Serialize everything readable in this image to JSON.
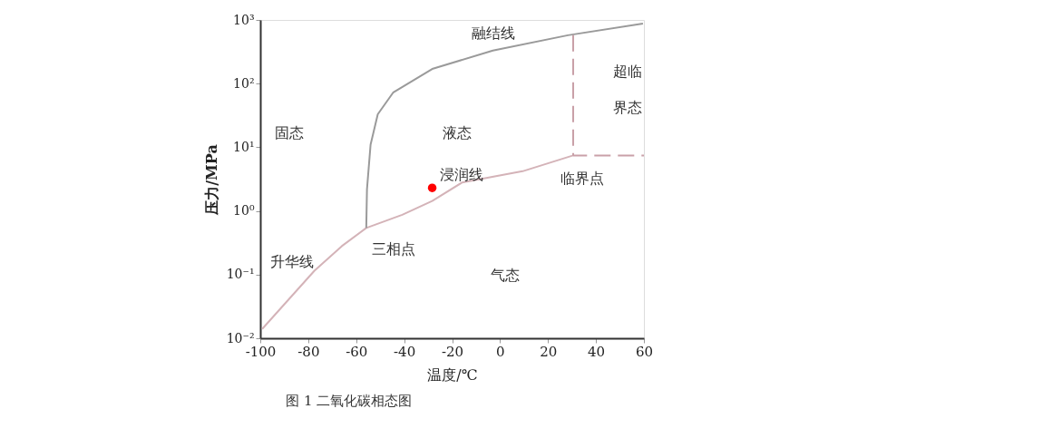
{
  "chart_data": {
    "type": "line",
    "xlabel": "温度/℃",
    "ylabel": "压力/MPa",
    "log": "y",
    "grid": false,
    "xlim": [
      -100,
      60
    ],
    "xticks": [
      -100,
      -80,
      -60,
      -40,
      -20,
      0,
      20,
      40,
      60
    ],
    "ylim": [
      0.01,
      1000
    ],
    "yticks": [
      {
        "value": 0.01,
        "label": "10⁻²"
      },
      {
        "value": 0.1,
        "label": "10⁻¹"
      },
      {
        "value": 1,
        "label": "10⁰"
      },
      {
        "value": 10,
        "label": "10¹"
      },
      {
        "value": 100,
        "label": "10²"
      },
      {
        "value": 1000,
        "label": "10³"
      }
    ],
    "series": [
      {
        "color": "#d4b3b8",
        "line_style": "solid",
        "x": [
          -99.2,
          -77.4,
          -66,
          -55.8,
          -40.8,
          -28.3,
          -15.8,
          9.4,
          30.2
        ],
        "values": [
          0.014,
          0.115,
          0.28,
          0.54,
          0.87,
          1.43,
          2.8,
          4.2,
          7.4
        ]
      },
      {
        "color": "#9a9a9a",
        "line_style": "solid",
        "x": [
          -55.8,
          -55.5,
          -54,
          -51,
          -44.5,
          -28.3,
          -3,
          28.3,
          59.6
        ],
        "values": [
          0.54,
          2.2,
          11,
          33,
          73,
          170,
          330,
          575,
          880
        ]
      },
      {
        "color": "#c9a0a8",
        "line_style": "dashed",
        "x": [
          30.5,
          30.5,
          60
        ],
        "values": [
          575,
          7.4,
          7.4
        ]
      },
      {
        "type": "scatter",
        "marker": "circle",
        "color": "#ff0000",
        "x": [
          -28.3
        ],
        "values": [
          2.3
        ]
      }
    ],
    "annotations": [
      "融结线",
      "超临界态",
      "固态",
      "液态",
      "浸润线",
      "临界点",
      "三相点",
      "升华线",
      "气态",
      "图 1   二氧化碳相态图"
    ]
  }
}
